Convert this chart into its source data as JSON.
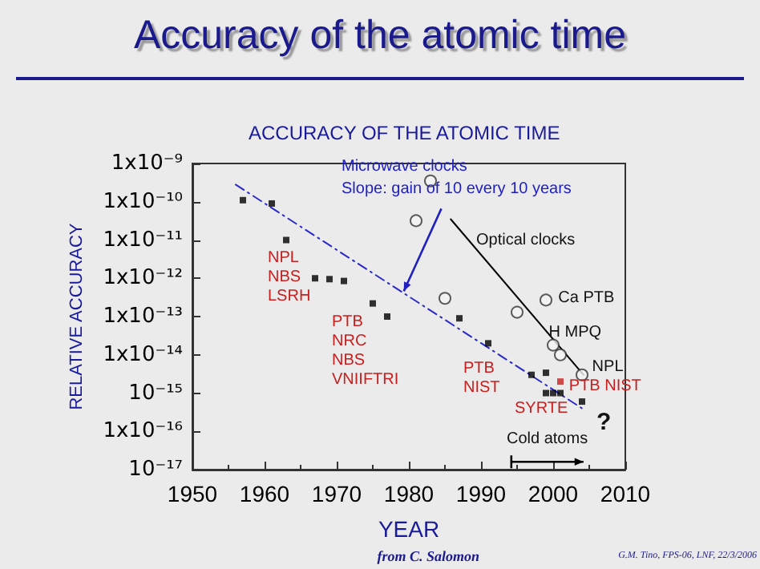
{
  "chart_data": {
    "type": "scatter",
    "title": "Accuracy of the atomic time",
    "subtitle": "ACCURACY OF THE ATOMIC TIME",
    "xlabel": "YEAR",
    "ylabel": "RELATIVE ACCURACY",
    "log": "y",
    "xlim": [
      1950,
      2010
    ],
    "xticks": [
      1950,
      1960,
      1970,
      1980,
      1990,
      2000,
      2010
    ],
    "ylim": [
      1e-17,
      1e-09
    ],
    "yticks": [
      {
        "value": 1e-09,
        "label": "1x10⁻⁹"
      },
      {
        "value": 1e-10,
        "label": "1x10⁻¹⁰"
      },
      {
        "value": 1e-11,
        "label": "1x10⁻¹¹"
      },
      {
        "value": 1e-12,
        "label": "1x10⁻¹²"
      },
      {
        "value": 1e-13,
        "label": "1x10⁻¹³"
      },
      {
        "value": 1e-14,
        "label": "1x10⁻¹⁴"
      },
      {
        "value": 1e-15,
        "label": "10⁻¹⁵"
      },
      {
        "value": 1e-16,
        "label": "1x10⁻¹⁶"
      },
      {
        "value": 1e-17,
        "label": "10⁻¹⁷"
      }
    ],
    "series": [
      {
        "type": "scatter",
        "marker": "square",
        "color": "#000000",
        "x": [
          1957,
          1961,
          1963,
          1967,
          1969,
          1971,
          1975,
          1977,
          1987,
          1991,
          1997,
          1999,
          1999,
          2000,
          2001,
          2004
        ],
        "values": [
          1.1e-10,
          9e-11,
          1e-11,
          1e-12,
          9.5e-13,
          8.5e-13,
          2.2e-13,
          1e-13,
          9e-14,
          2e-14,
          3e-15,
          3.4e-15,
          1e-15,
          1e-15,
          1e-15,
          6e-16
        ]
      },
      {
        "type": "scatter",
        "marker": "square",
        "color": "#c81e1e",
        "x": [
          2001
        ],
        "values": [
          2e-15
        ]
      },
      {
        "type": "scatter",
        "marker": "circle",
        "color": "#333333",
        "x": [
          1981,
          1983,
          1985,
          1995,
          1999,
          2000,
          2001,
          2004
        ],
        "values": [
          3.2e-11,
          3.5e-10,
          3e-13,
          1.3e-13,
          2.7e-13,
          1.8e-14,
          1e-14,
          3e-15
        ]
      },
      {
        "type": "line",
        "marker": "none",
        "line_style": "dashed",
        "color": "#2a2ac8",
        "x": [
          1956,
          2004
        ],
        "values": [
          2.8e-10,
          4e-16
        ]
      },
      {
        "type": "line",
        "marker": "none",
        "line_style": "solid",
        "color": "#000000",
        "x": [
          1985.8,
          2004.2
        ],
        "values": [
          3.5e-11,
          3e-15
        ]
      }
    ],
    "annotations": [
      "Microwave clocks",
      {
        "text": "Slope: gain of 10 every 10 years",
        "x": 1979.3,
        "y": 4.6e-13
      },
      "Optical clocks",
      {
        "text": "Ca PTB",
        "x": 2000.7,
        "y": 3e-13
      },
      {
        "text": "H MPQ",
        "x": 1999.4,
        "y": 3.9e-14
      },
      {
        "text": "NPL",
        "x": 2005.4,
        "y": 4.8e-15
      },
      {
        "text": "PTB NIST",
        "x": 2002.2,
        "y": 1.5e-15
      },
      "NPL\nNBS\nLSRH",
      "PTB\nNRC\nNBS\nVNIIFTRI",
      "PTB\nNIST",
      "SYRTE",
      "Cold atoms",
      "?",
      "from C. Salomon",
      "G.M. Tino, FPS-06, LNF, 22/3/2006"
    ]
  }
}
